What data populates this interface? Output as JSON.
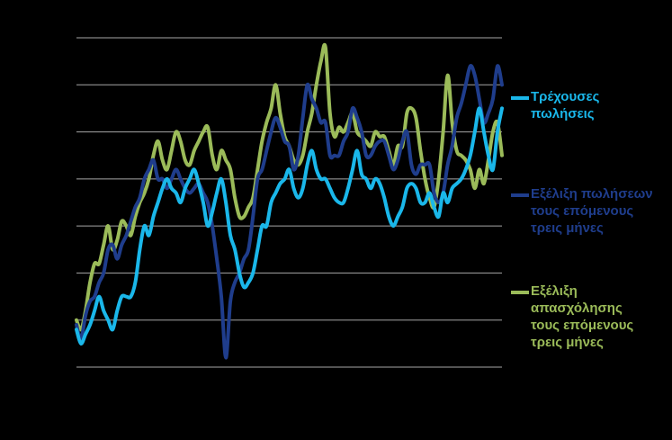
{
  "chart_data": {
    "type": "line",
    "title": "",
    "xlabel": "",
    "ylabel": "",
    "grid": true,
    "legend_position": "right",
    "ylim": [
      -40,
      30
    ],
    "y_gridlines": [
      -40,
      -30,
      -20,
      -10,
      0,
      10,
      20,
      30
    ],
    "x": [
      1,
      2,
      3,
      4,
      5,
      6,
      7,
      8,
      9,
      10,
      11,
      12,
      13,
      14,
      15,
      16,
      17,
      18,
      19,
      20,
      21,
      22,
      23,
      24,
      25,
      26,
      27,
      28,
      29,
      30,
      31,
      32,
      33,
      34,
      35,
      36,
      37,
      38,
      39,
      40,
      41,
      42,
      43,
      44,
      45,
      46,
      47,
      48,
      49,
      50,
      51,
      52,
      53,
      54,
      55,
      56,
      57,
      58,
      59,
      60,
      61,
      62,
      63,
      64,
      65,
      66,
      67,
      68,
      69,
      70,
      71,
      72,
      73,
      74,
      75,
      76,
      77,
      78,
      79,
      80,
      81,
      82,
      83,
      84,
      85,
      86,
      87,
      88,
      89,
      90,
      91,
      92,
      93,
      94,
      95
    ],
    "series": [
      {
        "name": "Τρέχουσες πωλήσεις",
        "color": "#1ab7ea",
        "values": [
          -32,
          -35,
          -33,
          -31,
          -28,
          -25,
          -28,
          -30,
          -32,
          -28,
          -25,
          -25,
          -25,
          -22,
          -15,
          -10,
          -12,
          -8,
          -5,
          -2,
          0,
          -2,
          -3,
          -5,
          -2,
          0,
          2,
          -1,
          -5,
          -10,
          -7,
          -3,
          0,
          -5,
          -12,
          -15,
          -20,
          -23,
          -22,
          -20,
          -15,
          -10,
          -10,
          -5,
          -3,
          -1,
          0,
          2,
          -2,
          -4,
          -2,
          3,
          6,
          2,
          0,
          0,
          -2,
          -4,
          -5,
          -5,
          -2,
          2,
          6,
          1,
          0,
          -2,
          0,
          -1,
          -4,
          -8,
          -10,
          -8,
          -6,
          -2,
          -1,
          -2,
          -5,
          -5,
          -3,
          -6,
          -8,
          -3,
          -5,
          -2,
          -1,
          0,
          2,
          5,
          10,
          15,
          10,
          5,
          2,
          10,
          15
        ]
      },
      {
        "name": "Εξέλιξη πωλήσεων τους επόμενους τρεις μήνες",
        "color": "#1f3d8c",
        "values": [
          -31,
          -34,
          -29,
          -26,
          -25,
          -22,
          -20,
          -15,
          -14,
          -17,
          -14,
          -12,
          -9,
          -6,
          -4,
          0,
          2,
          4,
          0,
          0,
          -2,
          0,
          2,
          0,
          -2,
          -3,
          -2,
          -1,
          -3,
          -5,
          -10,
          -17,
          -25,
          -38,
          -26,
          -22,
          -20,
          -17,
          -15,
          -8,
          0,
          2,
          6,
          10,
          13,
          11,
          8,
          7,
          2,
          5,
          13,
          20,
          17,
          15,
          12,
          12,
          5,
          5,
          5,
          8,
          10,
          15,
          13,
          10,
          5,
          5,
          7,
          8,
          8,
          5,
          2,
          4,
          8,
          10,
          3,
          1,
          3,
          3,
          3,
          -3,
          -5,
          -3,
          3,
          7,
          13,
          16,
          20,
          24,
          22,
          17,
          12,
          14,
          17,
          24,
          20
        ]
      },
      {
        "name": "Εξέλιξη απασχόλησης τους επόμενους τρεις μήνες",
        "color": "#9bbb59",
        "values": [
          -30,
          -32,
          -28,
          -22,
          -18,
          -18,
          -14,
          -10,
          -15,
          -13,
          -9,
          -10,
          -12,
          -8,
          -5,
          -3,
          0,
          5,
          8,
          4,
          2,
          6,
          10,
          8,
          4,
          3,
          6,
          8,
          10,
          11,
          5,
          2,
          6,
          4,
          2,
          -4,
          -8,
          -8,
          -6,
          -4,
          2,
          8,
          12,
          15,
          20,
          14,
          9,
          7,
          4,
          3,
          5,
          10,
          14,
          20,
          25,
          28,
          14,
          9,
          11,
          10,
          12,
          14,
          10,
          9,
          8,
          7,
          10,
          9,
          9,
          6,
          3,
          7,
          7,
          14,
          15,
          13,
          6,
          0,
          -4,
          -6,
          0,
          10,
          22,
          12,
          6,
          5,
          4,
          2,
          -2,
          2,
          -1,
          4,
          10,
          12,
          5
        ]
      }
    ]
  }
}
